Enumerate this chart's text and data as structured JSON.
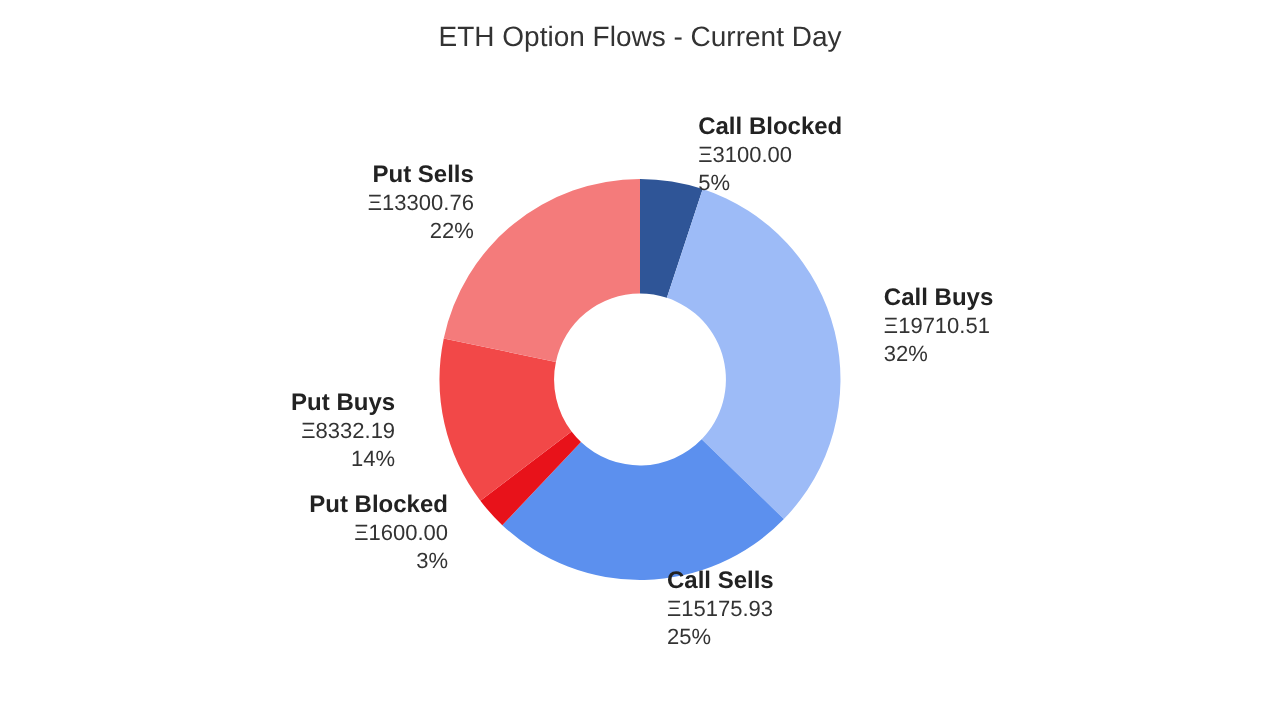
{
  "chart_data": {
    "type": "donut",
    "title": "ETH Option Flows - Current Day",
    "categories": [
      "Call Blocked",
      "Call Buys",
      "Call Sells",
      "Put Blocked",
      "Put Buys",
      "Put Sells"
    ],
    "values": [
      3100.0,
      19710.51,
      15175.93,
      1600.0,
      8332.19,
      13300.76
    ],
    "colors": [
      "#2f5597",
      "#9dbbf7",
      "#5c90ee",
      "#e8121a",
      "#f24848",
      "#f47b7b"
    ],
    "value_labels": [
      "Ξ3100.00\n5%",
      "Ξ19710.51\n32%",
      "Ξ15175.93\n25%",
      "Ξ1600.00\n3%",
      "Ξ8332.19\n14%",
      "Ξ13300.76\n22%"
    ],
    "legend": false
  }
}
